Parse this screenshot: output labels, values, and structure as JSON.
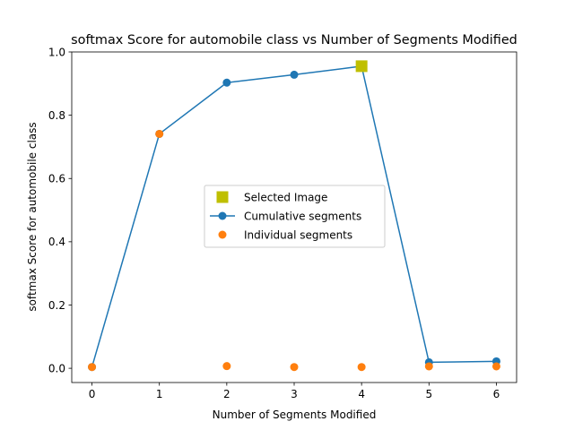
{
  "chart_data": {
    "type": "line",
    "title": "softmax Score for automobile class vs Number of Segments Modified",
    "xlabel": "Number of Segments Modified",
    "ylabel": "softmax Score for automobile class",
    "xlim": [
      -0.3,
      6.3
    ],
    "ylim": [
      -0.045,
      1.0
    ],
    "xticks": [
      "0",
      "1",
      "2",
      "3",
      "4",
      "5",
      "6"
    ],
    "yticks": [
      "0.0",
      "0.2",
      "0.4",
      "0.6",
      "0.8",
      "1.0"
    ],
    "grid": false,
    "legend_position": "center-right",
    "series": [
      {
        "name": "Cumulative segments",
        "kind": "line-marker",
        "color": "#1f77b4",
        "x": [
          0,
          1,
          2,
          3,
          4,
          5,
          6
        ],
        "y": [
          0.004,
          0.741,
          0.903,
          0.928,
          0.955,
          0.019,
          0.022
        ]
      },
      {
        "name": "Individual segments",
        "kind": "scatter",
        "color": "#ff7f0e",
        "x": [
          0,
          1,
          2,
          3,
          4,
          5,
          6
        ],
        "y": [
          0.004,
          0.741,
          0.007,
          0.004,
          0.004,
          0.006,
          0.006
        ]
      },
      {
        "name": "Selected Image",
        "kind": "square",
        "color": "#bfbf00",
        "x": [
          4
        ],
        "y": [
          0.955
        ]
      }
    ],
    "legend_order": [
      "Selected Image",
      "Cumulative segments",
      "Individual segments"
    ]
  }
}
